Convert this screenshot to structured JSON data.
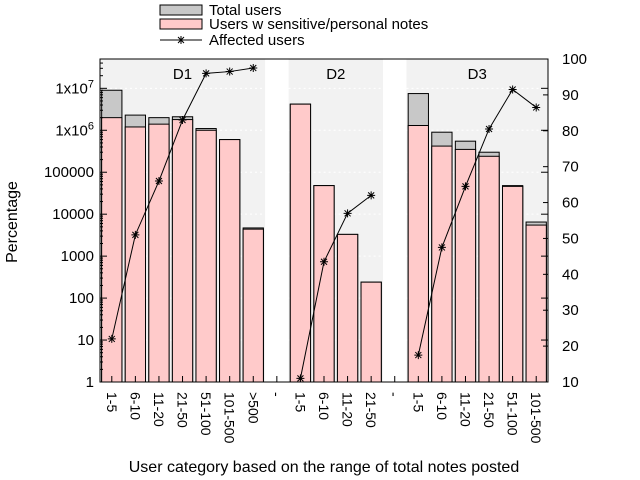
{
  "chart_data": {
    "type": "bar",
    "xlabel": "User category based on the range of total notes posted",
    "ylabel": "Percentage",
    "y_scale": "log",
    "ylim": [
      1,
      50000000
    ],
    "y2lim": [
      10,
      100
    ],
    "y_ticks": [
      1,
      10,
      100,
      1000,
      10000,
      100000,
      1000000,
      10000000
    ],
    "y_tick_labels": [
      "1",
      "10",
      "100",
      "1000",
      "10000",
      "100000",
      "1x10^6",
      "1x10^7"
    ],
    "y2_ticks": [
      10,
      20,
      30,
      40,
      50,
      60,
      70,
      80,
      90,
      100
    ],
    "separator_label": "-",
    "legend": {
      "placement": "top-center",
      "entries": [
        {
          "label": "Total users",
          "kind": "bar",
          "color": "#c8c8c8"
        },
        {
          "label": "Users w sensitive/personal notes",
          "kind": "bar",
          "color": "#ffcaca"
        },
        {
          "label": "Affected users",
          "kind": "line-point",
          "color": "#000000"
        }
      ]
    },
    "colors": {
      "total": "#c8c8c8",
      "sensitive": "#ffcaca",
      "panel": "#f2f2f2"
    },
    "groups": [
      {
        "name": "D1",
        "categories": [
          "1-5",
          "6-10",
          "11-20",
          "21-50",
          "51-100",
          "101-500",
          ">500"
        ],
        "total": [
          9000000,
          2300000,
          2000000,
          2100000,
          1100000,
          600000,
          4700
        ],
        "sensitive": [
          2000000,
          1200000,
          1400000,
          1800000,
          1000000,
          600000,
          4400
        ],
        "affected": [
          22,
          51,
          66,
          83,
          96,
          96.5,
          97.5
        ]
      },
      {
        "name": "D2",
        "categories": [
          "1-5",
          "6-10",
          "11-20",
          "21-50"
        ],
        "total": [
          4200000,
          48000,
          3300,
          240
        ],
        "sensitive": [
          4200000,
          48000,
          3300,
          240
        ],
        "affected": [
          11,
          43.5,
          57,
          62
        ]
      },
      {
        "name": "D3",
        "categories": [
          "1-5",
          "6-10",
          "11-20",
          "21-50",
          "51-100",
          "101-500"
        ],
        "total": [
          7500000,
          900000,
          550000,
          300000,
          48000,
          6500
        ],
        "sensitive": [
          1300000,
          420000,
          350000,
          240000,
          46000,
          5500
        ],
        "affected": [
          17.5,
          47.5,
          64.5,
          80.5,
          91.5,
          86.5
        ]
      }
    ]
  }
}
